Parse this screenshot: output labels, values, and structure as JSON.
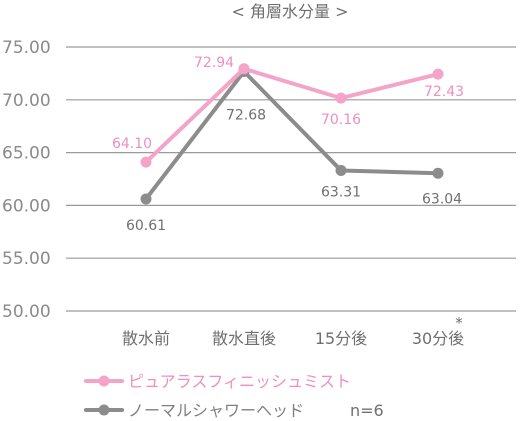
{
  "chart_data": {
    "type": "line",
    "title": "< 角層水分量 >",
    "categories": [
      "散水前",
      "散水直後",
      "15分後",
      "30分後"
    ],
    "asterisk": "*",
    "ylim": [
      50,
      75
    ],
    "yticks": [
      "50.00",
      "55.00",
      "60.00",
      "65.00",
      "70.00",
      "75.00"
    ],
    "grid": true,
    "legend_position": "bottom-left",
    "sample_size": "n=6",
    "series": [
      {
        "name": "ピュアラスフィニッシュミスト",
        "values": [
          64.1,
          72.94,
          70.16,
          72.43
        ],
        "labels": [
          "64.10",
          "72.94",
          "70.16",
          "72.43"
        ],
        "color": "#f4a3c9"
      },
      {
        "name": "ノーマルシャワーヘッド",
        "values": [
          60.61,
          72.68,
          63.31,
          63.04
        ],
        "labels": [
          "60.61",
          "72.68",
          "63.31",
          "63.04"
        ],
        "color": "#8c8c8c"
      }
    ]
  }
}
